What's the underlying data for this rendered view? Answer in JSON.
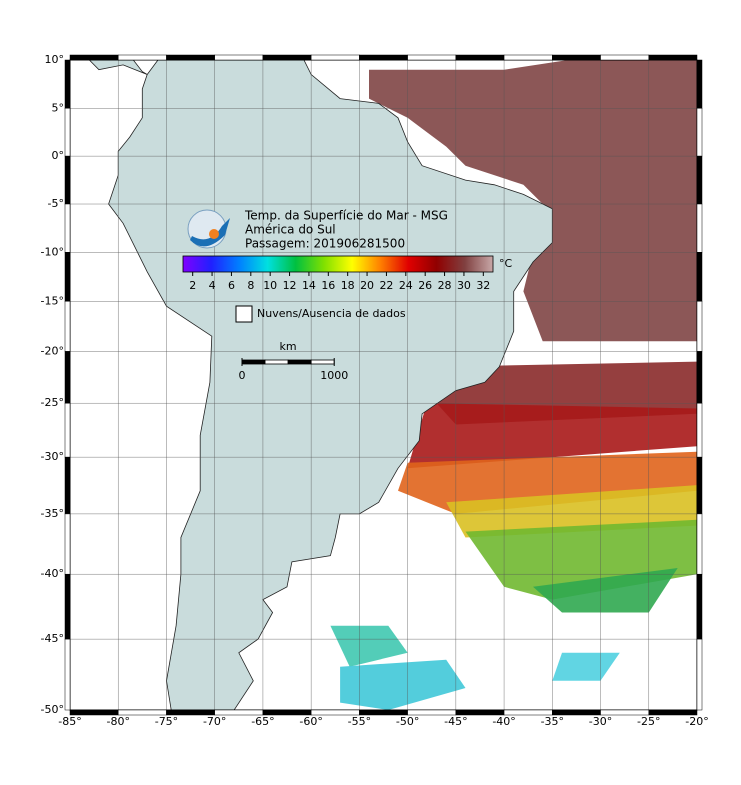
{
  "map": {
    "title": "Temp. da Superfície do Mar - MSG",
    "region": "América do Sul",
    "pass": "Passagem: 201906281500",
    "lonlim": [
      -85,
      -20
    ],
    "latlim": [
      -50,
      10
    ],
    "lonticks": [
      {
        "value": -85,
        "label": "-85°"
      },
      {
        "value": -80,
        "label": "-80°"
      },
      {
        "value": -75,
        "label": "-75°"
      },
      {
        "value": -70,
        "label": "-70°"
      },
      {
        "value": -65,
        "label": "-65°"
      },
      {
        "value": -60,
        "label": "-60°"
      },
      {
        "value": -55,
        "label": "-55°"
      },
      {
        "value": -50,
        "label": "-50°"
      },
      {
        "value": -45,
        "label": "-45°"
      },
      {
        "value": -40,
        "label": "-40°"
      },
      {
        "value": -35,
        "label": "-35°"
      },
      {
        "value": -30,
        "label": "-30°"
      },
      {
        "value": -25,
        "label": "-25°"
      },
      {
        "value": -20,
        "label": "-20°"
      }
    ],
    "latticks": [
      {
        "value": 10,
        "label": "10°"
      },
      {
        "value": 5,
        "label": "5°"
      },
      {
        "value": 0,
        "label": "0°"
      },
      {
        "value": -5,
        "label": "-5°"
      },
      {
        "value": -10,
        "label": "-10°"
      },
      {
        "value": -15,
        "label": "-15°"
      },
      {
        "value": -20,
        "label": "-20°"
      },
      {
        "value": -25,
        "label": "-25°"
      },
      {
        "value": -30,
        "label": "-30°"
      },
      {
        "value": -35,
        "label": "-35°"
      },
      {
        "value": -40,
        "label": "-40°"
      },
      {
        "value": -45,
        "label": "-45°"
      },
      {
        "value": -50,
        "label": "-50°"
      }
    ],
    "colorbar": {
      "ticks": [
        2,
        4,
        6,
        8,
        10,
        12,
        14,
        16,
        18,
        20,
        22,
        24,
        26,
        28,
        30,
        32
      ],
      "lim": [
        1,
        33
      ],
      "unit": "°C",
      "colors": [
        "#8000ff",
        "#2020ff",
        "#0080ff",
        "#00e0e0",
        "#00c040",
        "#80e000",
        "#ffff00",
        "#ff8000",
        "#e00000",
        "#900000",
        "#804040",
        "#c8a8a8"
      ]
    },
    "legend": "Nuvens/Ausencia de dados",
    "scale": {
      "unit": "km",
      "ticks": [
        0,
        1000
      ]
    }
  }
}
